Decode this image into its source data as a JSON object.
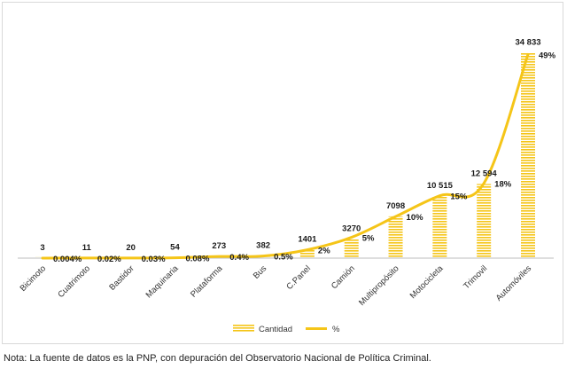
{
  "chart_data": {
    "type": "bar+line",
    "categories": [
      "Bicimoto",
      "Cuatrimoto",
      "Bastidor",
      "Maquinaria",
      "Plataforma",
      "Bus",
      "C.Panel",
      "Camión",
      "Multipropósito",
      "Motocicleta",
      "Trimovil",
      "Automóviles"
    ],
    "series": [
      {
        "name": "Cantidad",
        "type": "bar",
        "values": [
          3,
          11,
          20,
          54,
          273,
          382,
          1401,
          3270,
          7098,
          10515,
          12594,
          34833
        ],
        "labels": [
          "3",
          "11",
          "20",
          "54",
          "273",
          "382",
          "1401",
          "3270",
          "7098",
          "10 515",
          "12 594",
          "34 833"
        ],
        "color": "#F5C518"
      },
      {
        "name": "%",
        "type": "line",
        "values": [
          0.004,
          0.02,
          0.03,
          0.08,
          0.4,
          0.5,
          2,
          5,
          10,
          15,
          18,
          49
        ],
        "labels": [
          "0.004%",
          "0.02%",
          "0.03%",
          "0.08%",
          "0.4%",
          "0.5%",
          "2%",
          "5%",
          "10%",
          "15%",
          "18%",
          "49%"
        ],
        "color": "#F5C518"
      }
    ],
    "ylim_bar": [
      0,
      36000
    ],
    "ylim_pct": [
      0,
      51
    ],
    "legend": "bottom-center",
    "grid": false
  },
  "legend": {
    "bar_label": "Cantidad",
    "line_label": "%"
  },
  "footnote": "Nota: La fuente de datos es la PNP, con depuración del Observatorio Nacional de Política Criminal."
}
